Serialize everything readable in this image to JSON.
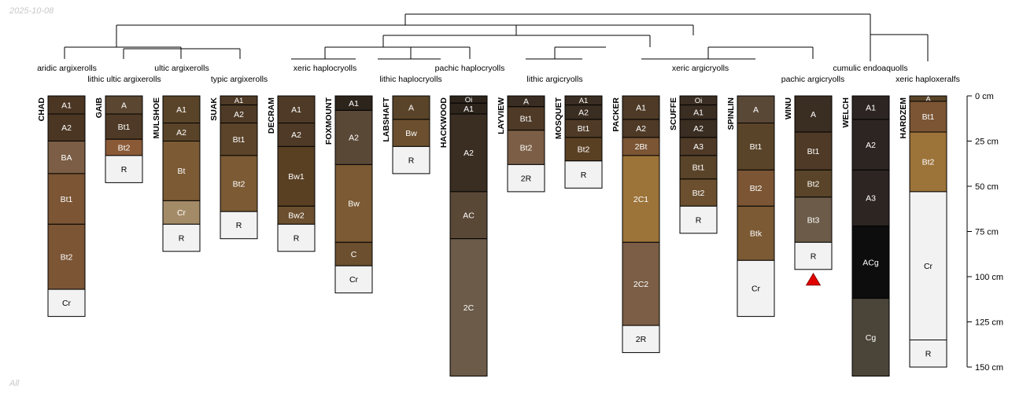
{
  "date_stamp": "2025-10-08",
  "footer_label": "All",
  "depth_axis": {
    "unit": "cm",
    "max_depth": 150,
    "ticks": [
      0,
      25,
      50,
      75,
      100,
      125,
      150
    ]
  },
  "colors": {
    "text_light": "#ffffff",
    "text_dark": "#000000",
    "line": "#000000",
    "marker": "#e00000"
  },
  "taxa": [
    {
      "label": "aridic argixerolls"
    },
    {
      "label": "lithic ultic argixerolls"
    },
    {
      "label": "ultic argixerolls"
    },
    {
      "label": "typic argixerolls"
    },
    {
      "label": "xeric haplocryolls"
    },
    {
      "label": "lithic haplocryolls"
    },
    {
      "label": "pachic haplocryolls"
    },
    {
      "label": "lithic argicryolls"
    },
    {
      "label": "xeric argicryolls"
    },
    {
      "label": "pachic argicryolls"
    },
    {
      "label": "cumulic endoaquolls"
    },
    {
      "label": "xeric haploxeralfs"
    }
  ],
  "profiles": [
    {
      "name": "CHAD",
      "horizons": [
        {
          "name": "A1",
          "top": 0,
          "bottom": 10,
          "color": "#4b3623"
        },
        {
          "name": "A2",
          "top": 10,
          "bottom": 25,
          "color": "#4b3623"
        },
        {
          "name": "BA",
          "top": 25,
          "bottom": 43,
          "color": "#7b5e45"
        },
        {
          "name": "Bt1",
          "top": 43,
          "bottom": 71,
          "color": "#7b5534"
        },
        {
          "name": "Bt2",
          "top": 71,
          "bottom": 107,
          "color": "#7b5534"
        },
        {
          "name": "Cr",
          "top": 107,
          "bottom": 122,
          "color": "#f2f2f2"
        }
      ]
    },
    {
      "name": "GAIB",
      "horizons": [
        {
          "name": "A",
          "top": 0,
          "bottom": 10,
          "color": "#5a4631"
        },
        {
          "name": "Bt1",
          "top": 10,
          "bottom": 24,
          "color": "#4e3a26"
        },
        {
          "name": "Bt2",
          "top": 24,
          "bottom": 33,
          "color": "#8a5a37"
        },
        {
          "name": "R",
          "top": 33,
          "bottom": 48,
          "color": "#f2f2f2"
        }
      ]
    },
    {
      "name": "MULSHOE",
      "horizons": [
        {
          "name": "A1",
          "top": 0,
          "bottom": 15,
          "color": "#5a4429"
        },
        {
          "name": "A2",
          "top": 15,
          "bottom": 25,
          "color": "#5a4429"
        },
        {
          "name": "Bt",
          "top": 25,
          "bottom": 58,
          "color": "#7b5a34"
        },
        {
          "name": "Cr",
          "top": 58,
          "bottom": 71,
          "color": "#a48b67"
        },
        {
          "name": "R",
          "top": 71,
          "bottom": 86,
          "color": "#f2f2f2"
        }
      ]
    },
    {
      "name": "SUAK",
      "horizons": [
        {
          "name": "A1",
          "top": 0,
          "bottom": 5,
          "color": "#4e3a26"
        },
        {
          "name": "A2",
          "top": 5,
          "bottom": 15,
          "color": "#4e3a26"
        },
        {
          "name": "Bt1",
          "top": 15,
          "bottom": 33,
          "color": "#5b4429"
        },
        {
          "name": "Bt2",
          "top": 33,
          "bottom": 64,
          "color": "#7b5a34"
        },
        {
          "name": "R",
          "top": 64,
          "bottom": 79,
          "color": "#f2f2f2"
        }
      ]
    },
    {
      "name": "DECRAM",
      "horizons": [
        {
          "name": "A1",
          "top": 0,
          "bottom": 15,
          "color": "#4e3a26"
        },
        {
          "name": "A2",
          "top": 15,
          "bottom": 28,
          "color": "#4e3a26"
        },
        {
          "name": "Bw1",
          "top": 28,
          "bottom": 61,
          "color": "#5a4023"
        },
        {
          "name": "Bw2",
          "top": 61,
          "bottom": 71,
          "color": "#6b4f2e"
        },
        {
          "name": "R",
          "top": 71,
          "bottom": 86,
          "color": "#f2f2f2"
        }
      ]
    },
    {
      "name": "FOXMOUNT",
      "horizons": [
        {
          "name": "A1",
          "top": 0,
          "bottom": 8,
          "color": "#2d241c"
        },
        {
          "name": "A2",
          "top": 8,
          "bottom": 38,
          "color": "#5a4837"
        },
        {
          "name": "Bw",
          "top": 38,
          "bottom": 81,
          "color": "#7b5a34"
        },
        {
          "name": "C",
          "top": 81,
          "bottom": 94,
          "color": "#6b4f2e"
        },
        {
          "name": "Cr",
          "top": 94,
          "bottom": 109,
          "color": "#f2f2f2"
        }
      ]
    },
    {
      "name": "LABSHAFT",
      "horizons": [
        {
          "name": "A",
          "top": 0,
          "bottom": 13,
          "color": "#5a4429"
        },
        {
          "name": "Bw",
          "top": 13,
          "bottom": 28,
          "color": "#6b4f2e"
        },
        {
          "name": "R",
          "top": 28,
          "bottom": 43,
          "color": "#f2f2f2"
        }
      ]
    },
    {
      "name": "HACKWOOD",
      "horizons": [
        {
          "name": "Oi",
          "top": 0,
          "bottom": 4,
          "color": "#2d241c"
        },
        {
          "name": "A1",
          "top": 4,
          "bottom": 10,
          "color": "#2d241c"
        },
        {
          "name": "A2",
          "top": 10,
          "bottom": 53,
          "color": "#3a2d21"
        },
        {
          "name": "AC",
          "top": 53,
          "bottom": 79,
          "color": "#5a4837"
        },
        {
          "name": "2C",
          "top": 79,
          "bottom": 155,
          "color": "#6b5b48"
        }
      ]
    },
    {
      "name": "LAYVIEW",
      "horizons": [
        {
          "name": "A",
          "top": 0,
          "bottom": 6,
          "color": "#3a2d21"
        },
        {
          "name": "Bt1",
          "top": 6,
          "bottom": 19,
          "color": "#4e3a26"
        },
        {
          "name": "Bt2",
          "top": 19,
          "bottom": 38,
          "color": "#7b5e45"
        },
        {
          "name": "2R",
          "top": 38,
          "bottom": 53,
          "color": "#f2f2f2"
        }
      ]
    },
    {
      "name": "MOSQUET",
      "horizons": [
        {
          "name": "A1",
          "top": 0,
          "bottom": 5,
          "color": "#3a2d21"
        },
        {
          "name": "A2",
          "top": 5,
          "bottom": 13,
          "color": "#3a2d21"
        },
        {
          "name": "Bt1",
          "top": 13,
          "bottom": 23,
          "color": "#4e3a26"
        },
        {
          "name": "Bt2",
          "top": 23,
          "bottom": 36,
          "color": "#5a4023"
        },
        {
          "name": "R",
          "top": 36,
          "bottom": 51,
          "color": "#f2f2f2"
        }
      ]
    },
    {
      "name": "PACKER",
      "horizons": [
        {
          "name": "A1",
          "top": 0,
          "bottom": 13,
          "color": "#4e3a26"
        },
        {
          "name": "A2",
          "top": 13,
          "bottom": 23,
          "color": "#4e3a26"
        },
        {
          "name": "2Bt",
          "top": 23,
          "bottom": 33,
          "color": "#7b5534"
        },
        {
          "name": "2C1",
          "top": 33,
          "bottom": 81,
          "color": "#9c7339"
        },
        {
          "name": "2C2",
          "top": 81,
          "bottom": 127,
          "color": "#7b5e45"
        },
        {
          "name": "2R",
          "top": 127,
          "bottom": 142,
          "color": "#f2f2f2"
        }
      ]
    },
    {
      "name": "SCUFFE",
      "horizons": [
        {
          "name": "Oi",
          "top": 0,
          "bottom": 5,
          "color": "#3a2d21"
        },
        {
          "name": "A1",
          "top": 5,
          "bottom": 13,
          "color": "#3a2d21"
        },
        {
          "name": "A2",
          "top": 13,
          "bottom": 23,
          "color": "#3a2d21"
        },
        {
          "name": "A3",
          "top": 23,
          "bottom": 33,
          "color": "#4e3a26"
        },
        {
          "name": "Bt1",
          "top": 33,
          "bottom": 46,
          "color": "#5a4429"
        },
        {
          "name": "Bt2",
          "top": 46,
          "bottom": 61,
          "color": "#6b4f2e"
        },
        {
          "name": "R",
          "top": 61,
          "bottom": 76,
          "color": "#f2f2f2"
        }
      ]
    },
    {
      "name": "SPINLIN",
      "horizons": [
        {
          "name": "A",
          "top": 0,
          "bottom": 15,
          "color": "#5a4837"
        },
        {
          "name": "Bt1",
          "top": 15,
          "bottom": 41,
          "color": "#5a4429"
        },
        {
          "name": "Bt2",
          "top": 41,
          "bottom": 61,
          "color": "#7b5534"
        },
        {
          "name": "Btk",
          "top": 61,
          "bottom": 91,
          "color": "#7b5a34"
        },
        {
          "name": "Cr",
          "top": 91,
          "bottom": 122,
          "color": "#f2f2f2"
        }
      ]
    },
    {
      "name": "WINU",
      "marker": true,
      "horizons": [
        {
          "name": "A",
          "top": 0,
          "bottom": 20,
          "color": "#3a2d21"
        },
        {
          "name": "Bt1",
          "top": 20,
          "bottom": 41,
          "color": "#4e3a26"
        },
        {
          "name": "Bt2",
          "top": 41,
          "bottom": 56,
          "color": "#5a4429"
        },
        {
          "name": "Bt3",
          "top": 56,
          "bottom": 81,
          "color": "#6b5b48"
        },
        {
          "name": "R",
          "top": 81,
          "bottom": 96,
          "color": "#f2f2f2"
        }
      ]
    },
    {
      "name": "WELCH",
      "horizons": [
        {
          "name": "A1",
          "top": 0,
          "bottom": 13,
          "color": "#2d2521"
        },
        {
          "name": "A2",
          "top": 13,
          "bottom": 41,
          "color": "#2d2521"
        },
        {
          "name": "A3",
          "top": 41,
          "bottom": 72,
          "color": "#2d2521"
        },
        {
          "name": "ACg",
          "top": 72,
          "bottom": 112,
          "color": "#0d0d0d"
        },
        {
          "name": "Cg",
          "top": 112,
          "bottom": 155,
          "color": "#4a4538"
        }
      ]
    },
    {
      "name": "HARDZEM",
      "horizons": [
        {
          "name": "A",
          "top": 0,
          "bottom": 3,
          "color": "#5a4429"
        },
        {
          "name": "Bt1",
          "top": 3,
          "bottom": 20,
          "color": "#7b5534"
        },
        {
          "name": "Bt2",
          "top": 20,
          "bottom": 53,
          "color": "#9c7339"
        },
        {
          "name": "Cr",
          "top": 53,
          "bottom": 135,
          "color": "#f2f2f2"
        },
        {
          "name": "R",
          "top": 135,
          "bottom": 150,
          "color": "#f2f2f2"
        }
      ]
    }
  ]
}
